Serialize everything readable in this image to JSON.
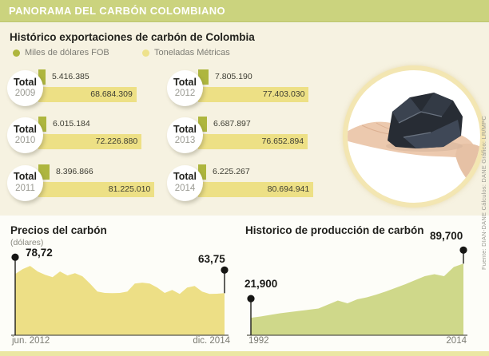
{
  "header": {
    "title": "PANORAMA DEL CARBÓN COLOMBIANO"
  },
  "exports": {
    "title": "Histórico exportaciones de carbón de Colombia",
    "legend": [
      {
        "label": "Miles de dólares FOB",
        "color": "#aeb63e"
      },
      {
        "label": "Toneladas Métricas",
        "color": "#eee28c"
      }
    ],
    "years": [
      {
        "label": "Total",
        "year": "2009",
        "fob": "5.416.385",
        "tons": "68.684.309"
      },
      {
        "label": "Total",
        "year": "2010",
        "fob": "6.015.184",
        "tons": "72.226.880"
      },
      {
        "label": "Total",
        "year": "2011",
        "fob": "8.396.866",
        "tons": "81.225.010"
      },
      {
        "label": "Total",
        "year": "2012",
        "fob": "7.805.190",
        "tons": "77.403.030"
      },
      {
        "label": "Total",
        "year": "2013",
        "fob": "6.687.897",
        "tons": "76.652.894"
      },
      {
        "label": "Total",
        "year": "2014",
        "fob": "6.225.267",
        "tons": "80.694.941"
      }
    ]
  },
  "price_chart": {
    "title": "Precios del carbón",
    "unit": "(dólares)",
    "start_label": "78,72",
    "end_label": "63,75",
    "x_start": "jun. 2012",
    "x_end": "dic. 2014"
  },
  "production_chart": {
    "title": "Historico de producción de carbón",
    "start_label": "21,900",
    "end_label": "89,700",
    "x_start": "1992",
    "x_end": "2014"
  },
  "credits": "Fuente: DIAN-DANE Cálculos: DANE    Gráfico: LR/MPC",
  "colors": {
    "header_green": "#cbd37e",
    "background_cream": "#f6f2e1",
    "fob_olive": "#aeb63e",
    "tons_yellow": "#ede085",
    "price_fill": "#eddf86",
    "production_fill": "#cfd88a",
    "circle_border": "#f3e6b2",
    "bottom_strip": "#ebe7a3"
  },
  "chart_data": [
    {
      "type": "bar",
      "id": "exports",
      "title": "Histórico exportaciones de carbón de Colombia",
      "categories": [
        "2009",
        "2010",
        "2011",
        "2012",
        "2013",
        "2014"
      ],
      "series": [
        {
          "name": "Miles de dólares FOB",
          "values": [
            5416385,
            6015184,
            8396866,
            7805190,
            6687897,
            6225267
          ]
        },
        {
          "name": "Toneladas Métricas",
          "values": [
            68684309,
            72226880,
            81225010,
            77403030,
            76652894,
            80694941
          ]
        }
      ],
      "legend_position": "top",
      "grid": false
    },
    {
      "type": "area",
      "id": "price",
      "title": "Precios del carbón",
      "ylabel": "(dólares)",
      "x_ticks": [
        "jun. 2012",
        "dic. 2014"
      ],
      "start_value": 78.72,
      "end_value": 63.75,
      "values": [
        78.72,
        82.5,
        85,
        80.6,
        78.1,
        76.2,
        80.6,
        77.5,
        79.3,
        76.9,
        71.2,
        65,
        63.9,
        63.8,
        63.9,
        65,
        71.2,
        71.9,
        71.2,
        68.1,
        63.9,
        66.2,
        63.1,
        68.1,
        69.4,
        65,
        63.1,
        63.3,
        63.75
      ],
      "ylim": [
        31,
        90
      ],
      "fill": "#eddf86",
      "marker_lift": [
        21,
        29
      ],
      "grid": false
    },
    {
      "type": "area",
      "id": "production",
      "title": "Historico de producción de carbón",
      "x_ticks": [
        "1992",
        "2014"
      ],
      "start_value": 21900,
      "end_value": 89700,
      "values": [
        21900,
        23500,
        25500,
        27500,
        29000,
        30500,
        32000,
        33500,
        38500,
        43500,
        40000,
        45000,
        47500,
        51000,
        55000,
        59500,
        64000,
        69000,
        74000,
        76500,
        74000,
        85500,
        89700
      ],
      "ylim": [
        0,
        95000
      ],
      "fill": "#cfd88a",
      "marker_lift": [
        24,
        17
      ],
      "grid": false
    }
  ]
}
